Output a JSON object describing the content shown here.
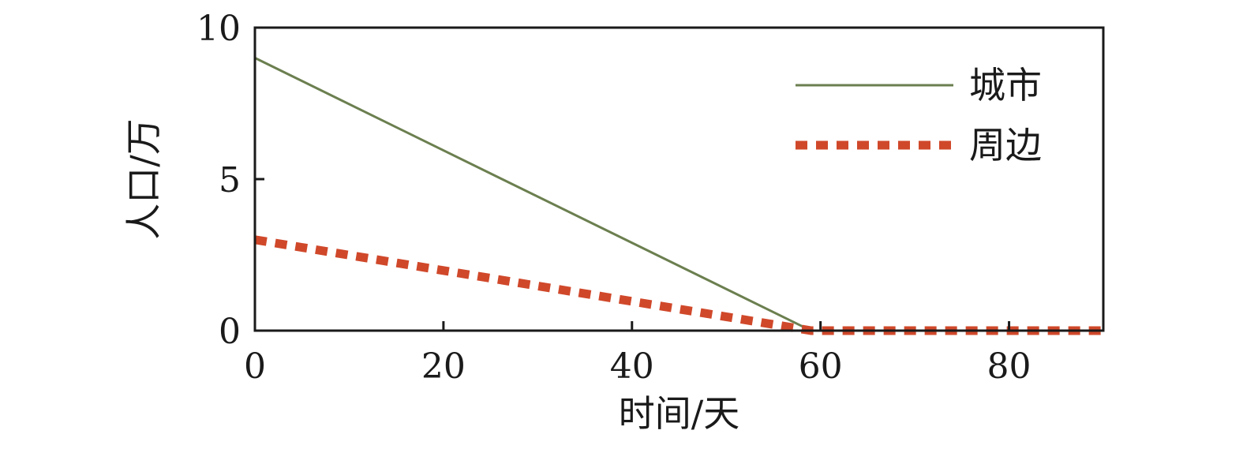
{
  "chart_data": {
    "type": "line",
    "title": "",
    "xlabel": "时间/天",
    "ylabel": "人口/万",
    "xlim": [
      0,
      90
    ],
    "ylim": [
      0,
      10
    ],
    "xticks": [
      0,
      20,
      40,
      60,
      80
    ],
    "yticks": [
      0,
      5,
      10
    ],
    "grid": false,
    "legend_position": "top-right",
    "series": [
      {
        "name": "城市",
        "style": "solid",
        "color": "#6b7f4f",
        "x": [
          0,
          59,
          90
        ],
        "y": [
          9,
          0,
          0
        ]
      },
      {
        "name": "周边",
        "style": "dotted",
        "color": "#d0482a",
        "x": [
          0,
          59,
          90
        ],
        "y": [
          3,
          0,
          0
        ]
      }
    ]
  }
}
